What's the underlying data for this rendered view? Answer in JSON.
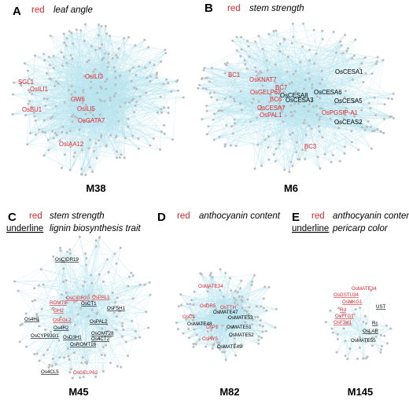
{
  "colors": {
    "edge": "#b9e4ee",
    "node": "#bdbdbd",
    "red_label": "#e0262b",
    "black_label": "#000000"
  },
  "panels": [
    {
      "letter": "A",
      "legend_red_word": "red",
      "legend_red_trait": "leaf angle",
      "module": "M38",
      "genes": [
        {
          "text": "OsILI3",
          "color": "red",
          "underline": false
        },
        {
          "text": "SGL1",
          "color": "red",
          "underline": false
        },
        {
          "text": "OsILI1",
          "color": "red",
          "underline": false
        },
        {
          "text": "GW6",
          "color": "red",
          "underline": false
        },
        {
          "text": "OsBU1",
          "color": "red",
          "underline": false
        },
        {
          "text": "OsILI5",
          "color": "red",
          "underline": false
        },
        {
          "text": "OsGATA7",
          "color": "red",
          "underline": false
        },
        {
          "text": "OsIAA12",
          "color": "red",
          "underline": false
        }
      ]
    },
    {
      "letter": "B",
      "legend_red_word": "red",
      "legend_red_trait": "stem strength",
      "module": "M6",
      "genes": [
        {
          "text": "OsCESA1",
          "color": "black",
          "underline": false
        },
        {
          "text": "BC1",
          "color": "red",
          "underline": false
        },
        {
          "text": "OsKNAT7",
          "color": "red",
          "underline": false
        },
        {
          "text": "BC7",
          "color": "red",
          "underline": false
        },
        {
          "text": "OsGELP62",
          "color": "red",
          "underline": false
        },
        {
          "text": "OsCESA8",
          "color": "black",
          "underline": false
        },
        {
          "text": "OsCESA6",
          "color": "black",
          "underline": false
        },
        {
          "text": "BC6",
          "color": "red",
          "underline": false
        },
        {
          "text": "OsCESA3",
          "color": "black",
          "underline": false
        },
        {
          "text": "OsCESA5",
          "color": "black",
          "underline": false
        },
        {
          "text": "OsCESA7",
          "color": "red",
          "underline": false
        },
        {
          "text": "OsPAL1",
          "color": "red",
          "underline": false
        },
        {
          "text": "OsPGSIP-A1",
          "color": "red",
          "underline": false
        },
        {
          "text": "OsCEAS2",
          "color": "black",
          "underline": false
        },
        {
          "text": "BC3",
          "color": "red",
          "underline": false
        }
      ]
    },
    {
      "letter": "C",
      "legend_red_word": "red",
      "legend_red_trait": "stem strength",
      "legend_ul_word": "underline",
      "legend_ul_trait": "lignin biosynthesis trait",
      "module": "M45",
      "genes": [
        {
          "text": "OsCIDR19",
          "color": "black",
          "underline": true
        },
        {
          "text": "OsCIDR20",
          "color": "red",
          "underline": true
        },
        {
          "text": "OsPAL1",
          "color": "red",
          "underline": true
        },
        {
          "text": "ROMT9",
          "color": "red",
          "underline": true
        },
        {
          "text": "OsCT1",
          "color": "black",
          "underline": true
        },
        {
          "text": "OsF5H1",
          "color": "black",
          "underline": true
        },
        {
          "text": "GH2",
          "color": "red",
          "underline": true
        },
        {
          "text": "Os4H1",
          "color": "black",
          "underline": true
        },
        {
          "text": "OsEGL2",
          "color": "red",
          "underline": true
        },
        {
          "text": "OsPAL2",
          "color": "black",
          "underline": true
        },
        {
          "text": "Os4H2",
          "color": "black",
          "underline": true
        },
        {
          "text": "OsCYP93G1",
          "color": "black",
          "underline": true
        },
        {
          "text": "OsOMT28",
          "color": "black",
          "underline": true
        },
        {
          "text": "OsD3H1",
          "color": "black",
          "underline": true
        },
        {
          "text": "Os4CT2",
          "color": "black",
          "underline": true
        },
        {
          "text": "OsROMT16",
          "color": "black",
          "underline": true
        },
        {
          "text": "Os4CL5",
          "color": "black",
          "underline": true
        },
        {
          "text": "OsGELP62",
          "color": "red",
          "underline": false
        }
      ]
    },
    {
      "letter": "D",
      "legend_red_word": "red",
      "legend_red_trait": "anthocyanin content",
      "module": "M82",
      "genes": [
        {
          "text": "OsMATE34",
          "color": "red",
          "underline": false
        },
        {
          "text": "OsDR5",
          "color": "red",
          "underline": false
        },
        {
          "text": "OsTTH",
          "color": "red",
          "underline": false
        },
        {
          "text": "OsMATE47",
          "color": "black",
          "underline": false
        },
        {
          "text": "OsC1",
          "color": "red",
          "underline": false
        },
        {
          "text": "OsMATE53",
          "color": "black",
          "underline": false
        },
        {
          "text": "OsMATE48",
          "color": "black",
          "underline": false
        },
        {
          "text": "OsP1",
          "color": "red",
          "underline": false
        },
        {
          "text": "OsMATE51",
          "color": "black",
          "underline": false
        },
        {
          "text": "OsMATE52",
          "color": "black",
          "underline": false
        },
        {
          "text": "OsHY5",
          "color": "red",
          "underline": false
        },
        {
          "text": "OsMATE49",
          "color": "black",
          "underline": false
        }
      ]
    },
    {
      "letter": "E",
      "legend_red_word": "red",
      "legend_red_trait": "anthocyanin content",
      "legend_ul_word": "underline",
      "legend_ul_trait": "pericarp color",
      "module": "M145",
      "genes": [
        {
          "text": "OsMATE34",
          "color": "red",
          "underline": false
        },
        {
          "text": "OsGSTU34",
          "color": "red",
          "underline": true
        },
        {
          "text": "OsMKG1",
          "color": "red",
          "underline": true
        },
        {
          "text": "UST",
          "color": "black",
          "underline": true
        },
        {
          "text": "Rd",
          "color": "red",
          "underline": true
        },
        {
          "text": "OsTTG1",
          "color": "red",
          "underline": true
        },
        {
          "text": "OsF3H1",
          "color": "red",
          "underline": true
        },
        {
          "text": "Rc",
          "color": "black",
          "underline": true
        },
        {
          "text": "OsLAR",
          "color": "black",
          "underline": true
        },
        {
          "text": "OsMATE55",
          "color": "black",
          "underline": false
        }
      ]
    }
  ]
}
